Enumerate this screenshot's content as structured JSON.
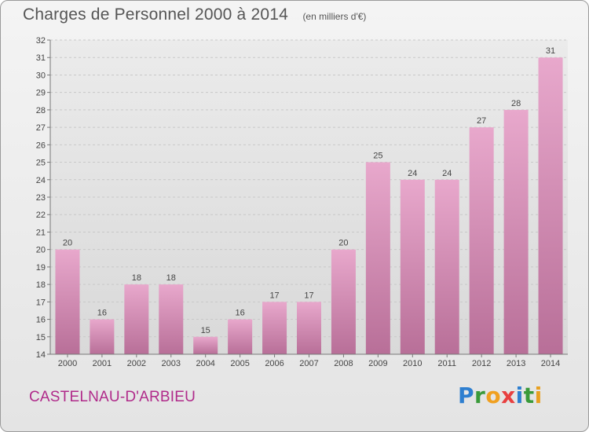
{
  "header": {
    "title": "Charges de Personnel 2000 à 2014",
    "unit": "(en milliers d'€)"
  },
  "commune": "CASTELNAU-D'ARBIEU",
  "logo": {
    "text": "Proxiti",
    "letters": [
      {
        "ch": "P",
        "color": "#2e7fd0"
      },
      {
        "ch": "r",
        "color": "#3a9a3a"
      },
      {
        "ch": "o",
        "color": "#f0a020"
      },
      {
        "ch": "x",
        "color": "#e84040"
      },
      {
        "ch": "i",
        "color": "#2e7fd0"
      },
      {
        "ch": "t",
        "color": "#3a9a3a"
      },
      {
        "ch": "i",
        "color": "#e8a020"
      }
    ]
  },
  "chart_data": {
    "type": "bar",
    "title": "Charges de Personnel 2000 à 2014",
    "subtitle": "(en milliers d'€)",
    "categories": [
      "2000",
      "2001",
      "2002",
      "2003",
      "2004",
      "2005",
      "2006",
      "2007",
      "2008",
      "2009",
      "2010",
      "2011",
      "2012",
      "2013",
      "2014"
    ],
    "values": [
      20,
      16,
      18,
      18,
      15,
      16,
      17,
      17,
      20,
      25,
      24,
      24,
      27,
      28,
      31
    ],
    "ylim": [
      14,
      32
    ],
    "yticks": [
      14,
      15,
      16,
      17,
      18,
      19,
      20,
      21,
      22,
      23,
      24,
      25,
      26,
      27,
      28,
      29,
      30,
      31,
      32
    ],
    "grid": true,
    "bar_color": "#d98fb8",
    "xlabel": "",
    "ylabel": ""
  }
}
